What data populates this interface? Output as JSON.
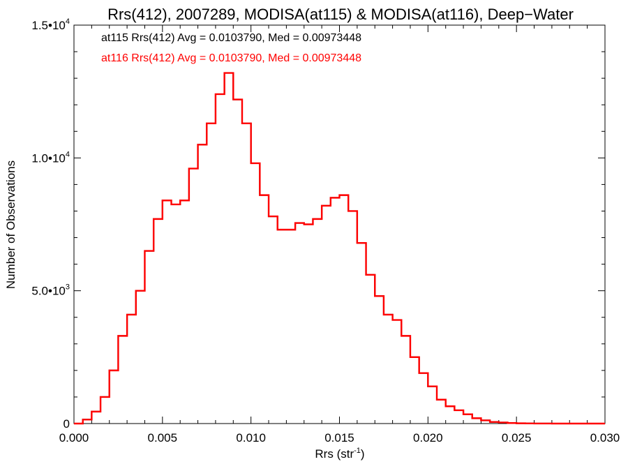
{
  "chart_data": {
    "type": "line",
    "step": true,
    "title": "Rrs(412), 2007289, MODISA(at115) & MODISA(at116), Deep−Water",
    "xlabel": "Rrs (str",
    "xlabel_sup": "-1",
    "xlabel_close": ")",
    "ylabel": "Number of Observations",
    "xlim": [
      0.0,
      0.03
    ],
    "ylim": [
      0,
      15000
    ],
    "x_ticks": [
      {
        "value": 0.0,
        "label": "0.000"
      },
      {
        "value": 0.005,
        "label": "0.005"
      },
      {
        "value": 0.01,
        "label": "0.010"
      },
      {
        "value": 0.015,
        "label": "0.015"
      },
      {
        "value": 0.02,
        "label": "0.020"
      },
      {
        "value": 0.025,
        "label": "0.025"
      },
      {
        "value": 0.03,
        "label": "0.030"
      }
    ],
    "y_ticks": [
      {
        "value": 0,
        "label": "0",
        "sup": ""
      },
      {
        "value": 5000,
        "label": "5.0•10",
        "sup": "3"
      },
      {
        "value": 10000,
        "label": "1.0•10",
        "sup": "4"
      },
      {
        "value": 15000,
        "label": "1.5•10",
        "sup": "4"
      }
    ],
    "annotations": [
      {
        "text": "at115 Rrs(412) Avg = 0.0103790, Med = 0.00973448",
        "color": "#000000"
      },
      {
        "text": "at116 Rrs(412) Avg = 0.0103790, Med = 0.00973448",
        "color": "#ff0000"
      }
    ],
    "series": [
      {
        "name": "at115",
        "color": "#000000",
        "key": "hist"
      },
      {
        "name": "at116",
        "color": "#ff0000",
        "key": "hist"
      }
    ],
    "x": [
      0.0,
      0.0005,
      0.001,
      0.0015,
      0.002,
      0.0025,
      0.003,
      0.0035,
      0.004,
      0.0045,
      0.005,
      0.0055,
      0.006,
      0.0065,
      0.007,
      0.0075,
      0.008,
      0.0085,
      0.009,
      0.0095,
      0.01,
      0.0105,
      0.011,
      0.0115,
      0.012,
      0.0125,
      0.013,
      0.0135,
      0.014,
      0.0145,
      0.015,
      0.0155,
      0.016,
      0.0165,
      0.017,
      0.0175,
      0.018,
      0.0185,
      0.019,
      0.0195,
      0.02,
      0.0205,
      0.021,
      0.0215,
      0.022,
      0.0225,
      0.023,
      0.0235,
      0.024,
      0.0245,
      0.025,
      0.0255,
      0.026,
      0.027,
      0.028,
      0.03
    ],
    "hist": [
      0,
      150,
      450,
      1000,
      2000,
      3300,
      4100,
      5000,
      6500,
      7700,
      8400,
      8250,
      8400,
      9600,
      10500,
      11300,
      12400,
      13200,
      12200,
      11300,
      9800,
      8600,
      7800,
      7300,
      7300,
      7550,
      7500,
      7700,
      8200,
      8500,
      8600,
      8000,
      6800,
      5600,
      4800,
      4100,
      3900,
      3300,
      2500,
      1900,
      1400,
      900,
      650,
      500,
      350,
      200,
      120,
      60,
      40,
      20,
      10,
      5,
      2,
      0,
      0,
      0
    ]
  }
}
